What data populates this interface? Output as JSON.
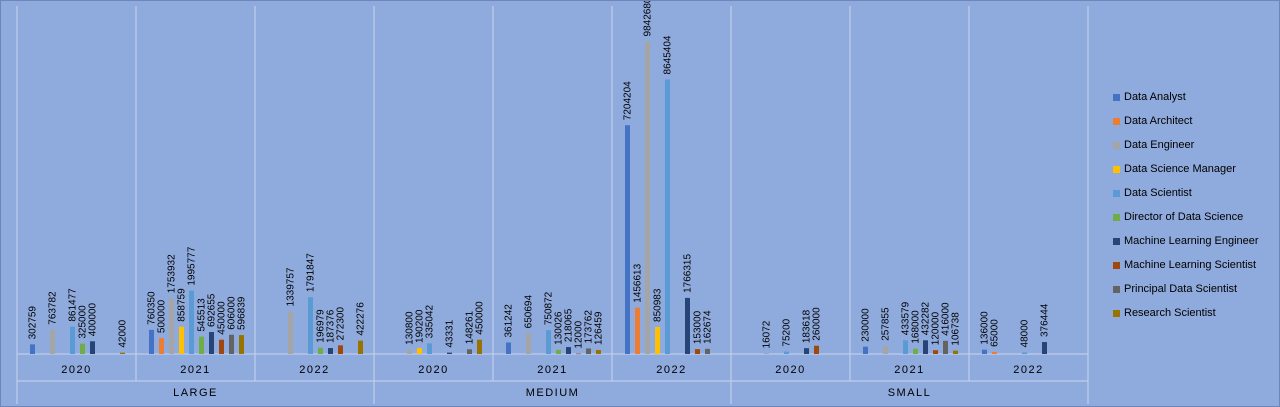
{
  "chart_data": {
    "type": "bar",
    "grouping": "multi-level category axis (company size > work year)",
    "groups": [
      {
        "name": "LARGE",
        "years": [
          "2020",
          "2021",
          "2022"
        ]
      },
      {
        "name": "MEDIUM",
        "years": [
          "2020",
          "2021",
          "2022"
        ]
      },
      {
        "name": "SMALL",
        "years": [
          "2020",
          "2021",
          "2022"
        ]
      }
    ],
    "series": [
      {
        "name": "Data Analyst",
        "color": "#4472c4"
      },
      {
        "name": "Data Architect",
        "color": "#ed7d31"
      },
      {
        "name": "Data Engineer",
        "color": "#a5a5a5"
      },
      {
        "name": "Data Science Manager",
        "color": "#ffc000"
      },
      {
        "name": "Data Scientist",
        "color": "#5b9bd5"
      },
      {
        "name": "Director of Data Science",
        "color": "#70ad47"
      },
      {
        "name": "Machine Learning Engineer",
        "color": "#264478"
      },
      {
        "name": "Machine Learning Scientist",
        "color": "#9e480e"
      },
      {
        "name": "Principal Data Scientist",
        "color": "#636363"
      },
      {
        "name": "Research Scientist",
        "color": "#997300"
      }
    ],
    "values": [
      [
        302759,
        null,
        763782,
        null,
        861477,
        325000,
        400000,
        null,
        null,
        42000
      ],
      [
        760350,
        500000,
        1753932,
        858759,
        1995777,
        545513,
        692655,
        450000,
        606000,
        596839
      ],
      [
        null,
        null,
        1339757,
        null,
        1791847,
        196979,
        187376,
        272300,
        null,
        422276
      ],
      [
        null,
        null,
        130800,
        190200,
        335042,
        null,
        43331,
        null,
        148261,
        450000
      ],
      [
        361242,
        null,
        650694,
        null,
        750872,
        130026,
        218065,
        12000,
        173762,
        126459
      ],
      [
        7204204,
        1456613,
        9842680,
        850983,
        8645404,
        null,
        1766315,
        153000,
        162674,
        null
      ],
      [
        null,
        null,
        16072,
        null,
        75200,
        null,
        183618,
        260000,
        null,
        null
      ],
      [
        230000,
        null,
        257855,
        null,
        433579,
        168000,
        432282,
        120000,
        416000,
        106738
      ],
      [
        136000,
        65000,
        null,
        null,
        48000,
        null,
        376444,
        null,
        null,
        null
      ]
    ],
    "legend_position": "right",
    "gridlines": "vertical separators between categories",
    "data_labels": true
  }
}
